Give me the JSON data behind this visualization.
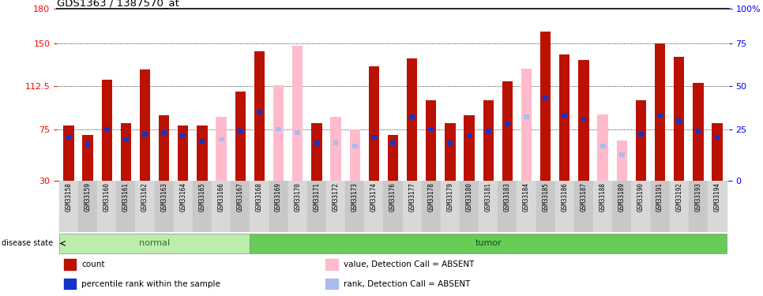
{
  "title": "GDS1363 / 1387570_at",
  "samples": [
    "GSM33158",
    "GSM33159",
    "GSM33160",
    "GSM33161",
    "GSM33162",
    "GSM33163",
    "GSM33164",
    "GSM33165",
    "GSM33166",
    "GSM33167",
    "GSM33168",
    "GSM33169",
    "GSM33170",
    "GSM33171",
    "GSM33172",
    "GSM33173",
    "GSM33174",
    "GSM33176",
    "GSM33177",
    "GSM33178",
    "GSM33179",
    "GSM33180",
    "GSM33181",
    "GSM33183",
    "GSM33184",
    "GSM33185",
    "GSM33186",
    "GSM33187",
    "GSM33188",
    "GSM33189",
    "GSM33190",
    "GSM33191",
    "GSM33192",
    "GSM33193",
    "GSM33194"
  ],
  "group": [
    "normal",
    "normal",
    "normal",
    "normal",
    "normal",
    "normal",
    "normal",
    "normal",
    "normal",
    "normal",
    "tumor",
    "tumor",
    "tumor",
    "tumor",
    "tumor",
    "tumor",
    "tumor",
    "tumor",
    "tumor",
    "tumor",
    "tumor",
    "tumor",
    "tumor",
    "tumor",
    "tumor",
    "tumor",
    "tumor",
    "tumor",
    "tumor",
    "tumor",
    "tumor",
    "tumor",
    "tumor",
    "tumor",
    "tumor"
  ],
  "count_values": [
    78,
    70,
    118,
    80,
    127,
    87,
    78,
    78,
    0,
    108,
    143,
    0,
    0,
    80,
    0,
    0,
    130,
    70,
    137,
    100,
    80,
    87,
    100,
    117,
    0,
    160,
    140,
    135,
    0,
    0,
    100,
    150,
    138,
    115,
    80
  ],
  "absent_values": [
    0,
    0,
    0,
    0,
    0,
    0,
    0,
    0,
    86,
    0,
    0,
    113,
    148,
    0,
    86,
    75,
    0,
    0,
    0,
    0,
    0,
    0,
    0,
    0,
    128,
    0,
    0,
    0,
    88,
    65,
    0,
    0,
    0,
    0,
    0
  ],
  "percentile_rank": [
    25,
    21,
    30,
    24,
    27,
    28,
    26,
    23,
    0,
    29,
    40,
    0,
    0,
    22,
    0,
    0,
    25,
    22,
    37,
    30,
    22,
    26,
    29,
    33,
    0,
    48,
    38,
    36,
    0,
    0,
    27,
    38,
    35,
    29,
    25
  ],
  "absent_rank": [
    0,
    0,
    0,
    0,
    0,
    0,
    0,
    0,
    24,
    0,
    0,
    30,
    28,
    0,
    22,
    20,
    0,
    0,
    0,
    0,
    0,
    0,
    0,
    0,
    37,
    0,
    0,
    0,
    20,
    15,
    0,
    0,
    0,
    0,
    0
  ],
  "is_absent": [
    false,
    false,
    false,
    false,
    false,
    false,
    false,
    false,
    true,
    false,
    false,
    true,
    true,
    false,
    true,
    true,
    false,
    false,
    false,
    false,
    false,
    false,
    false,
    false,
    true,
    false,
    false,
    false,
    true,
    true,
    false,
    false,
    false,
    false,
    false
  ],
  "y_min": 30,
  "y_max": 180,
  "yticks_left": [
    30,
    75,
    112.5,
    150,
    180
  ],
  "ytick_labels_left": [
    "30",
    "75",
    "112.5",
    "150",
    "180"
  ],
  "ytick_labels_right": [
    "0",
    "25",
    "50",
    "75",
    "100%"
  ],
  "bar_color_count": "#BB1100",
  "bar_color_absent": "#FFBBCC",
  "bar_color_rank": "#1133CC",
  "bar_color_rank_absent": "#AABBEE",
  "normal_light": "#CCFFCC",
  "normal_dark": "#99EE99",
  "tumor_light": "#88DD88",
  "tumor_dark": "#55CC55"
}
